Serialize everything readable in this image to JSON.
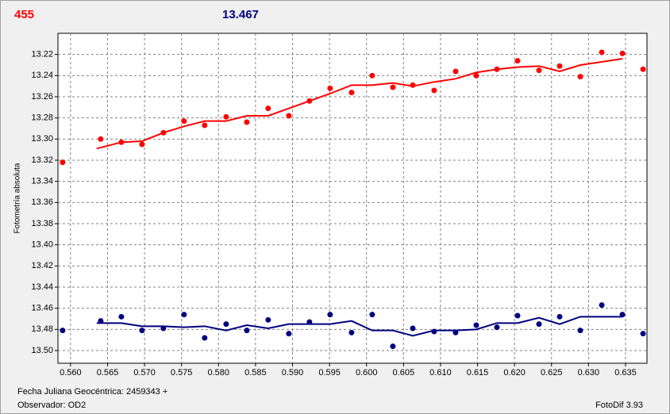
{
  "chart_data": {
    "type": "scatter",
    "title": "455",
    "subtitle": "13.467",
    "ylabel": "Fotometría absoluta",
    "annotations": [
      "Fecha Juliana Geocéntrica: 2459343 +",
      "Observador: OD2",
      "FotoDif 3.93"
    ],
    "xlim": [
      0.5583,
      0.6379
    ],
    "ylim": [
      13.512,
      13.2
    ],
    "xticks": [
      {
        "value": 0.56,
        "label": "0.560"
      },
      {
        "value": 0.565,
        "label": "0.565"
      },
      {
        "value": 0.57,
        "label": "0.570"
      },
      {
        "value": 0.575,
        "label": "0.575"
      },
      {
        "value": 0.58,
        "label": "0.580"
      },
      {
        "value": 0.585,
        "label": "0.585"
      },
      {
        "value": 0.59,
        "label": "0.590"
      },
      {
        "value": 0.595,
        "label": "0.595"
      },
      {
        "value": 0.6,
        "label": "0.600"
      },
      {
        "value": 0.605,
        "label": "0.605"
      },
      {
        "value": 0.61,
        "label": "0.610"
      },
      {
        "value": 0.615,
        "label": "0.615"
      },
      {
        "value": 0.62,
        "label": "0.620"
      },
      {
        "value": 0.625,
        "label": "0.625"
      },
      {
        "value": 0.63,
        "label": "0.630"
      },
      {
        "value": 0.635,
        "label": "0.635"
      }
    ],
    "yticks": [
      13.22,
      13.24,
      13.26,
      13.28,
      {
        "value": 13.3,
        "label": "13.30"
      },
      13.32,
      13.34,
      13.36,
      13.38,
      {
        "value": 13.4,
        "label": "13.40"
      },
      13.42,
      13.44,
      13.46,
      13.48,
      {
        "value": 13.5,
        "label": "13.50"
      }
    ],
    "grid": true,
    "series": [
      {
        "type": "scatter",
        "color": "#ff0000",
        "x": [
          0.55893,
          0.56408,
          0.56687,
          0.56966,
          0.57255,
          0.57534,
          0.57813,
          0.58103,
          0.58382,
          0.58671,
          0.5895,
          0.59229,
          0.59508,
          0.59798,
          0.60077,
          0.60356,
          0.60625,
          0.60914,
          0.61204,
          0.61483,
          0.61762,
          0.62041,
          0.62331,
          0.6261,
          0.62889,
          0.63179,
          0.63458,
          0.63737
        ],
        "values": [
          13.322,
          13.3,
          13.303,
          13.305,
          13.294,
          13.283,
          13.287,
          13.279,
          13.284,
          13.271,
          13.278,
          13.264,
          13.252,
          13.256,
          13.24,
          13.251,
          13.249,
          13.254,
          13.236,
          13.24,
          13.234,
          13.226,
          13.235,
          13.231,
          13.241,
          13.218,
          13.219,
          13.234
        ]
      },
      {
        "type": "line",
        "color": "#ff0000",
        "x": [
          0.56354,
          0.56687,
          0.56966,
          0.57255,
          0.57534,
          0.57813,
          0.58103,
          0.58382,
          0.58671,
          0.5895,
          0.59229,
          0.59508,
          0.59798,
          0.60077,
          0.60356,
          0.60625,
          0.60914,
          0.61204,
          0.61483,
          0.61762,
          0.62041,
          0.62331,
          0.6261,
          0.62889,
          0.63179,
          0.63458
        ],
        "values": [
          13.309,
          13.303,
          13.302,
          13.294,
          13.288,
          13.283,
          13.283,
          13.278,
          13.278,
          13.271,
          13.264,
          13.257,
          13.249,
          13.249,
          13.247,
          13.25,
          13.246,
          13.243,
          13.237,
          13.234,
          13.232,
          13.231,
          13.236,
          13.23,
          13.227,
          13.224
        ]
      },
      {
        "type": "scatter",
        "color": "#000080",
        "x": [
          0.55893,
          0.56408,
          0.56687,
          0.56966,
          0.57255,
          0.57534,
          0.57813,
          0.58103,
          0.58382,
          0.58671,
          0.5895,
          0.59229,
          0.59508,
          0.59798,
          0.60077,
          0.60356,
          0.60625,
          0.60914,
          0.61204,
          0.61483,
          0.61762,
          0.62041,
          0.62331,
          0.6261,
          0.62889,
          0.63179,
          0.63458,
          0.63737
        ],
        "values": [
          13.481,
          13.472,
          13.468,
          13.481,
          13.479,
          13.466,
          13.488,
          13.475,
          13.481,
          13.471,
          13.484,
          13.473,
          13.466,
          13.483,
          13.466,
          13.496,
          13.479,
          13.482,
          13.483,
          13.476,
          13.478,
          13.467,
          13.475,
          13.468,
          13.481,
          13.457,
          13.466,
          13.484
        ]
      },
      {
        "type": "line",
        "color": "#000080",
        "x": [
          0.56354,
          0.56687,
          0.56966,
          0.57255,
          0.57534,
          0.57813,
          0.58103,
          0.58382,
          0.58671,
          0.5895,
          0.59229,
          0.59508,
          0.59798,
          0.60077,
          0.60356,
          0.60625,
          0.60914,
          0.61204,
          0.61483,
          0.61762,
          0.62041,
          0.62331,
          0.6261,
          0.62889,
          0.63179,
          0.63458
        ],
        "values": [
          13.474,
          13.474,
          13.477,
          13.477,
          13.478,
          13.477,
          13.481,
          13.476,
          13.479,
          13.475,
          13.475,
          13.475,
          13.472,
          13.481,
          13.481,
          13.486,
          13.481,
          13.481,
          13.48,
          13.474,
          13.474,
          13.469,
          13.475,
          13.468,
          13.468,
          13.468
        ]
      }
    ]
  }
}
